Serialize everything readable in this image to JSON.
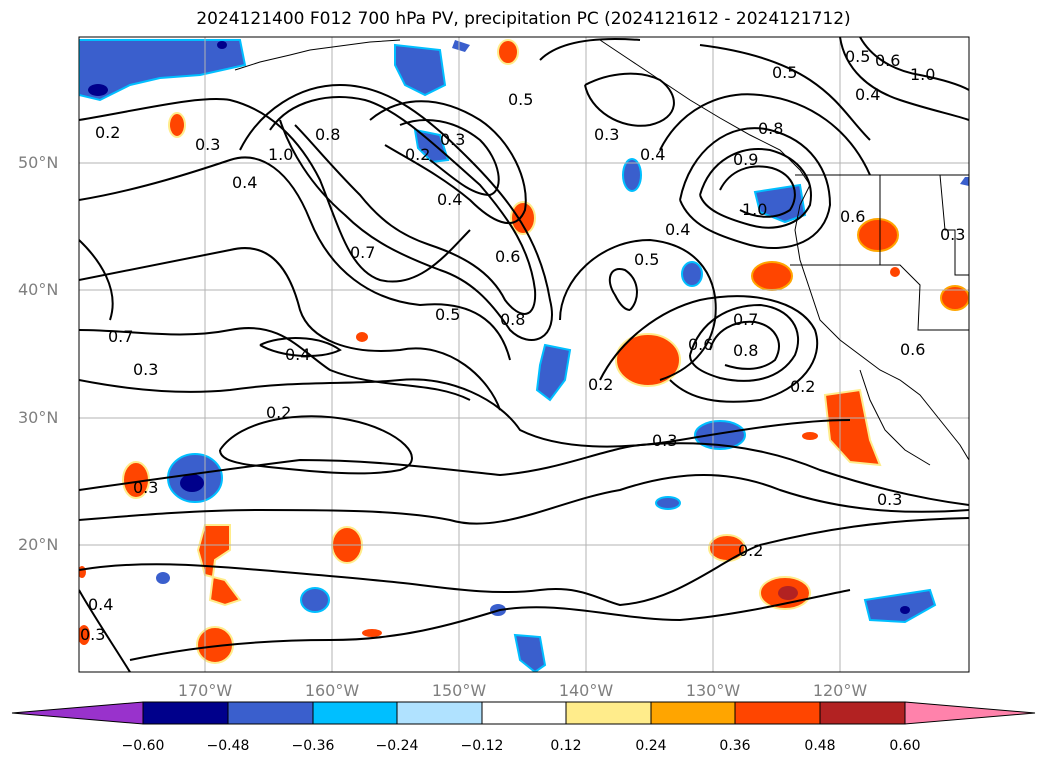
{
  "title": "2024121400 F012 700 hPa PV, precipitation PC (2024121612 - 2024121712)",
  "lat_labels": [
    "50°N",
    "40°N",
    "30°N",
    "20°N"
  ],
  "lon_labels": [
    "170°W",
    "160°W",
    "150°W",
    "140°W",
    "130°W",
    "120°W"
  ],
  "colorbar": {
    "ticks": [
      "−0.60",
      "−0.48",
      "−0.36",
      "−0.24",
      "−0.12",
      "0.12",
      "0.24",
      "0.36",
      "0.48",
      "0.60"
    ],
    "colors": [
      "#9932cc",
      "#00008b",
      "#3a5fcd",
      "#00bfff",
      "#b0e2ff",
      "#ffffff",
      "#ffec8b",
      "#ffa500",
      "#ff4500",
      "#b22222",
      "#ff82ab"
    ]
  },
  "contour_labels": [
    "0.2",
    "0.3",
    "0.4",
    "1.0",
    "0.8",
    "0.3",
    "0.2",
    "0.4",
    "0.7",
    "0.6",
    "0.8",
    "0.5",
    "0.5",
    "0.3",
    "0.4",
    "0.4",
    "0.5",
    "0.8",
    "0.9",
    "1.0",
    "0.6",
    "0.7",
    "0.8",
    "0.6",
    "0.2",
    "0.2",
    "0.3",
    "0.3",
    "0.2",
    "0.3",
    "0.2",
    "0.4",
    "0.3",
    "0.7",
    "0.5",
    "0.6",
    "0.4",
    "1.0",
    "0.5",
    "0.6",
    "0.3",
    "0.4",
    "0.3"
  ]
}
